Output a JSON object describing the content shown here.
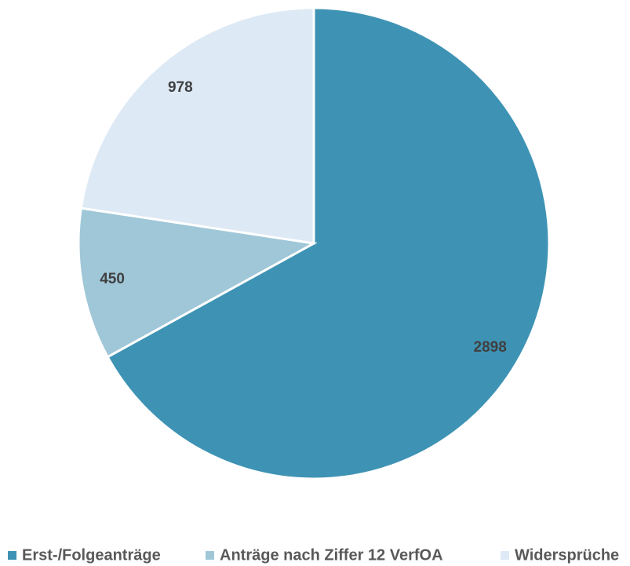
{
  "chart_data": {
    "type": "pie",
    "categories": [
      "Erst-/Folgeanträge",
      "Anträge nach Ziffer 12 VerfOA",
      "Widersprüche"
    ],
    "values": [
      2898,
      450,
      978
    ],
    "colors": [
      "#3e93b4",
      "#9fc7d8",
      "#dde9f5"
    ],
    "legend": "bottom"
  }
}
